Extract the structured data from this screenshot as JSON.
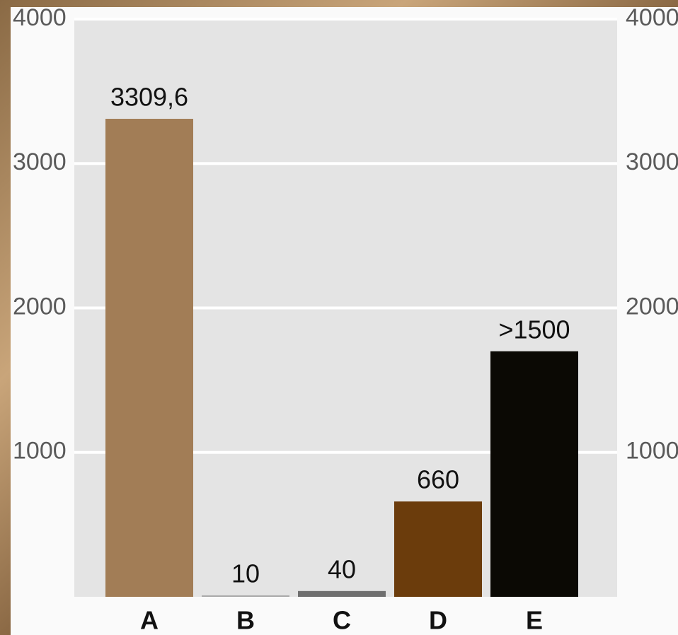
{
  "chart_data": {
    "type": "bar",
    "categories": [
      "A",
      "B",
      "C",
      "D",
      "E"
    ],
    "values": [
      3309.6,
      10,
      40,
      660,
      1700
    ],
    "value_labels": [
      "3309,6",
      "10",
      "40",
      "660",
      ">1500"
    ],
    "colors": [
      "#a27d56",
      "#a9a9a9",
      "#6f6f6f",
      "#6b3c0c",
      "#0b0904"
    ],
    "ylim": [
      0,
      4000
    ],
    "yticks": [
      1000,
      2000,
      3000,
      4000
    ],
    "y2lim": [
      0,
      4000
    ],
    "y2ticks": [
      1000,
      2000,
      3000,
      4000
    ],
    "grid": true
  }
}
